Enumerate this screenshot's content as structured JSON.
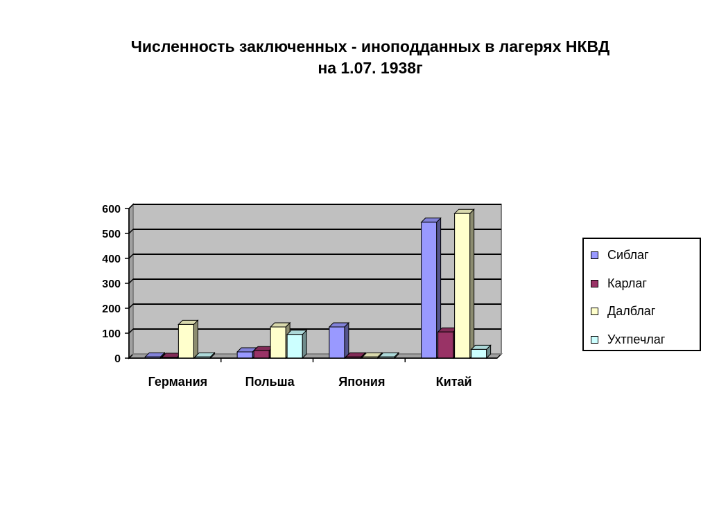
{
  "chart_data": {
    "type": "bar",
    "title": "Численность заключенных  - иноподданных в лагерях НКВД\nна 1.07. 1938г",
    "categories": [
      "Германия",
      "Польша",
      "Япония",
      "Китай"
    ],
    "series": [
      {
        "name": "Сиблаг",
        "values": [
          5,
          25,
          125,
          545
        ],
        "color": "#9999ff"
      },
      {
        "name": "Карлаг",
        "values": [
          3,
          30,
          5,
          105
        ],
        "color": "#993366"
      },
      {
        "name": "Далблаг",
        "values": [
          135,
          125,
          5,
          580
        ],
        "color": "#ffffcc"
      },
      {
        "name": "Ухтпечлаг",
        "values": [
          5,
          95,
          5,
          35
        ],
        "color": "#ccffff"
      }
    ],
    "yticks": [
      "0",
      "100",
      "200",
      "300",
      "400",
      "500",
      "600"
    ],
    "ylim": [
      0,
      600
    ],
    "grid": true,
    "legend_position": "right",
    "plot_background": "#c0c0c0"
  }
}
